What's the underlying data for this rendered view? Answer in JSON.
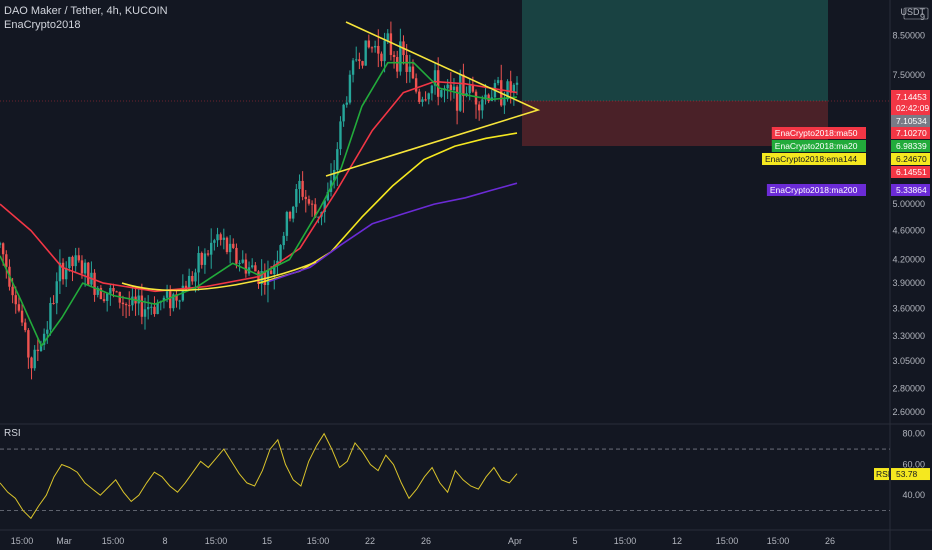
{
  "header": {
    "symbol_line": "DAO Maker / Tether, 4h, KUCOIN",
    "study_name": "EnaCrypto2018"
  },
  "rsi_panel": {
    "label": "RSI",
    "value_tag": "RSI",
    "value": "53.78"
  },
  "currency_label": "USDT",
  "colors": {
    "background": "#131722",
    "candle_up": "#26a69a",
    "candle_down": "#ef5350",
    "ma50": "#f23645",
    "ma20": "#22ab3b",
    "ema144": "#f5e81f",
    "ma200": "#6b2bd6",
    "pattern": "#f7e53b",
    "rsi_line": "#d9c32b"
  },
  "chart_data": [
    {
      "type": "candlestick",
      "title": "DAO Maker / Tether, 4h, KUCOIN",
      "scale": "log",
      "ylim": [
        2.6,
        9.5
      ],
      "y_ticks": [
        {
          "value": 9.0,
          "label": "9"
        },
        {
          "value": 8.5,
          "label": "8.50000"
        },
        {
          "value": 7.5,
          "label": "7.50000"
        },
        {
          "value": 5.0,
          "label": "5.00000"
        },
        {
          "value": 4.6,
          "label": "4.60000"
        },
        {
          "value": 4.2,
          "label": "4.20000"
        },
        {
          "value": 3.9,
          "label": "3.90000"
        },
        {
          "value": 3.6,
          "label": "3.60000"
        },
        {
          "value": 3.3,
          "label": "3.30000"
        },
        {
          "value": 3.05,
          "label": "3.05000"
        },
        {
          "value": 2.8,
          "label": "2.80000"
        },
        {
          "value": 2.6,
          "label": "2.60000"
        }
      ],
      "x_ticks": [
        "15:00",
        "Mar",
        "15:00",
        "8",
        "15:00",
        "15",
        "15:00",
        "22",
        "26",
        "Apr",
        "5",
        "15:00",
        "12",
        "15:00",
        "15:00",
        "26"
      ],
      "price_anchors": [
        {
          "x": 0,
          "close": 4.4
        },
        {
          "x": 0.03,
          "close": 3.75
        },
        {
          "x": 0.06,
          "close": 3.0
        },
        {
          "x": 0.09,
          "close": 3.4
        },
        {
          "x": 0.12,
          "close": 4.1
        },
        {
          "x": 0.15,
          "close": 4.15
        },
        {
          "x": 0.18,
          "close": 3.9
        },
        {
          "x": 0.22,
          "close": 3.75
        },
        {
          "x": 0.26,
          "close": 3.6
        },
        {
          "x": 0.3,
          "close": 3.65
        },
        {
          "x": 0.34,
          "close": 3.75
        },
        {
          "x": 0.38,
          "close": 4.05
        },
        {
          "x": 0.42,
          "close": 4.5
        },
        {
          "x": 0.45,
          "close": 4.25
        },
        {
          "x": 0.48,
          "close": 4.1
        },
        {
          "x": 0.52,
          "close": 3.95
        },
        {
          "x": 0.55,
          "close": 4.6
        },
        {
          "x": 0.58,
          "close": 5.3
        },
        {
          "x": 0.61,
          "close": 4.8
        },
        {
          "x": 0.64,
          "close": 5.2
        },
        {
          "x": 0.665,
          "close": 6.8
        },
        {
          "x": 0.69,
          "close": 8.0
        },
        {
          "x": 0.72,
          "close": 8.2
        },
        {
          "x": 0.75,
          "close": 8.2
        },
        {
          "x": 0.78,
          "close": 7.9
        },
        {
          "x": 0.81,
          "close": 7.0
        },
        {
          "x": 0.84,
          "close": 7.3
        },
        {
          "x": 0.87,
          "close": 7.0
        },
        {
          "x": 0.9,
          "close": 7.2
        },
        {
          "x": 0.93,
          "close": 7.0
        },
        {
          "x": 0.96,
          "close": 7.15
        },
        {
          "x": 1.0,
          "close": 7.14
        }
      ],
      "indicators": [
        {
          "name": "EnaCrypto2018:ma50",
          "value": "7.10270",
          "color": "#f23645",
          "points": [
            [
              0,
              5.0
            ],
            [
              0.06,
              4.6
            ],
            [
              0.12,
              4.1
            ],
            [
              0.2,
              3.9
            ],
            [
              0.3,
              3.8
            ],
            [
              0.4,
              3.86
            ],
            [
              0.5,
              3.98
            ],
            [
              0.58,
              4.35
            ],
            [
              0.65,
              5.2
            ],
            [
              0.72,
              6.3
            ],
            [
              0.78,
              7.1
            ],
            [
              0.84,
              7.35
            ],
            [
              0.9,
              7.3
            ],
            [
              1.0,
              7.1
            ]
          ]
        },
        {
          "name": "EnaCrypto2018:ma20",
          "value": "6.98339",
          "color": "#22ab3b",
          "points": [
            [
              0,
              4.25
            ],
            [
              0.04,
              3.7
            ],
            [
              0.08,
              3.2
            ],
            [
              0.12,
              3.5
            ],
            [
              0.16,
              3.9
            ],
            [
              0.22,
              3.75
            ],
            [
              0.3,
              3.65
            ],
            [
              0.38,
              3.85
            ],
            [
              0.45,
              4.15
            ],
            [
              0.5,
              4.0
            ],
            [
              0.56,
              4.2
            ],
            [
              0.62,
              4.95
            ],
            [
              0.66,
              5.6
            ],
            [
              0.7,
              6.8
            ],
            [
              0.75,
              7.8
            ],
            [
              0.8,
              7.8
            ],
            [
              0.85,
              7.2
            ],
            [
              0.9,
              7.05
            ],
            [
              0.95,
              6.95
            ],
            [
              1.0,
              7.0
            ]
          ]
        },
        {
          "name": "EnaCrypto2018:ema144",
          "value": "6.24670",
          "color": "#f5e81f",
          "points": [
            [
              0.5,
              3.9
            ],
            [
              0.58,
              4.05
            ],
            [
              0.64,
              4.3
            ],
            [
              0.7,
              4.8
            ],
            [
              0.76,
              5.3
            ],
            [
              0.82,
              5.75
            ],
            [
              0.88,
              6.0
            ],
            [
              0.94,
              6.15
            ],
            [
              1.0,
              6.25
            ]
          ]
        },
        {
          "name": "EnaCrypto2018:ma200",
          "value": "5.33864",
          "color": "#6b2bd6",
          "points": [
            [
              0.52,
              3.92
            ],
            [
              0.6,
              4.1
            ],
            [
              0.66,
              4.4
            ],
            [
              0.72,
              4.7
            ],
            [
              0.78,
              4.85
            ],
            [
              0.84,
              5.0
            ],
            [
              0.9,
              5.1
            ],
            [
              0.95,
              5.22
            ],
            [
              1.0,
              5.34
            ]
          ]
        }
      ],
      "price_tags": [
        {
          "value": "7.14453",
          "sub": "02:42:09",
          "color": "#f23645",
          "text_color": "#ffffff"
        },
        {
          "value": "7.10534",
          "color": "#787b86",
          "text_color": "#ffffff"
        },
        {
          "value": "6.14551",
          "color": "#f23645",
          "text_color": "#ffffff"
        }
      ],
      "legend": [
        {
          "name": "EnaCrypto2018:ma50",
          "value": "7.10270"
        },
        {
          "name": "EnaCrypto2018:ma20",
          "value": "6.98339"
        },
        {
          "name": "EnaCrypto2018:ema144",
          "value": "6.24670"
        },
        {
          "name": "EnaCrypto2018:ma200",
          "value": "5.33864"
        }
      ],
      "drawings": [
        "symmetrical-triangle",
        "rounded-base-arc",
        "long-position-box"
      ]
    },
    {
      "type": "line",
      "title": "RSI",
      "ylim": [
        20,
        85
      ],
      "y_ticks": [
        80,
        60,
        40
      ],
      "bands": [
        70,
        30
      ],
      "series": [
        {
          "name": "RSI",
          "values": [
            48,
            42,
            38,
            30,
            25,
            33,
            40,
            52,
            60,
            58,
            55,
            48,
            44,
            40,
            45,
            50,
            42,
            36,
            40,
            48,
            55,
            52,
            46,
            42,
            48,
            55,
            62,
            58,
            64,
            70,
            62,
            54,
            48,
            46,
            56,
            70,
            76,
            60,
            50,
            46,
            62,
            72,
            80,
            70,
            58,
            62,
            74,
            68,
            60,
            56,
            66,
            60,
            48,
            38,
            44,
            52,
            58,
            48,
            42,
            56,
            50,
            46,
            44,
            52,
            58,
            50,
            48,
            54
          ]
        }
      ],
      "current_value": 53.78
    }
  ]
}
